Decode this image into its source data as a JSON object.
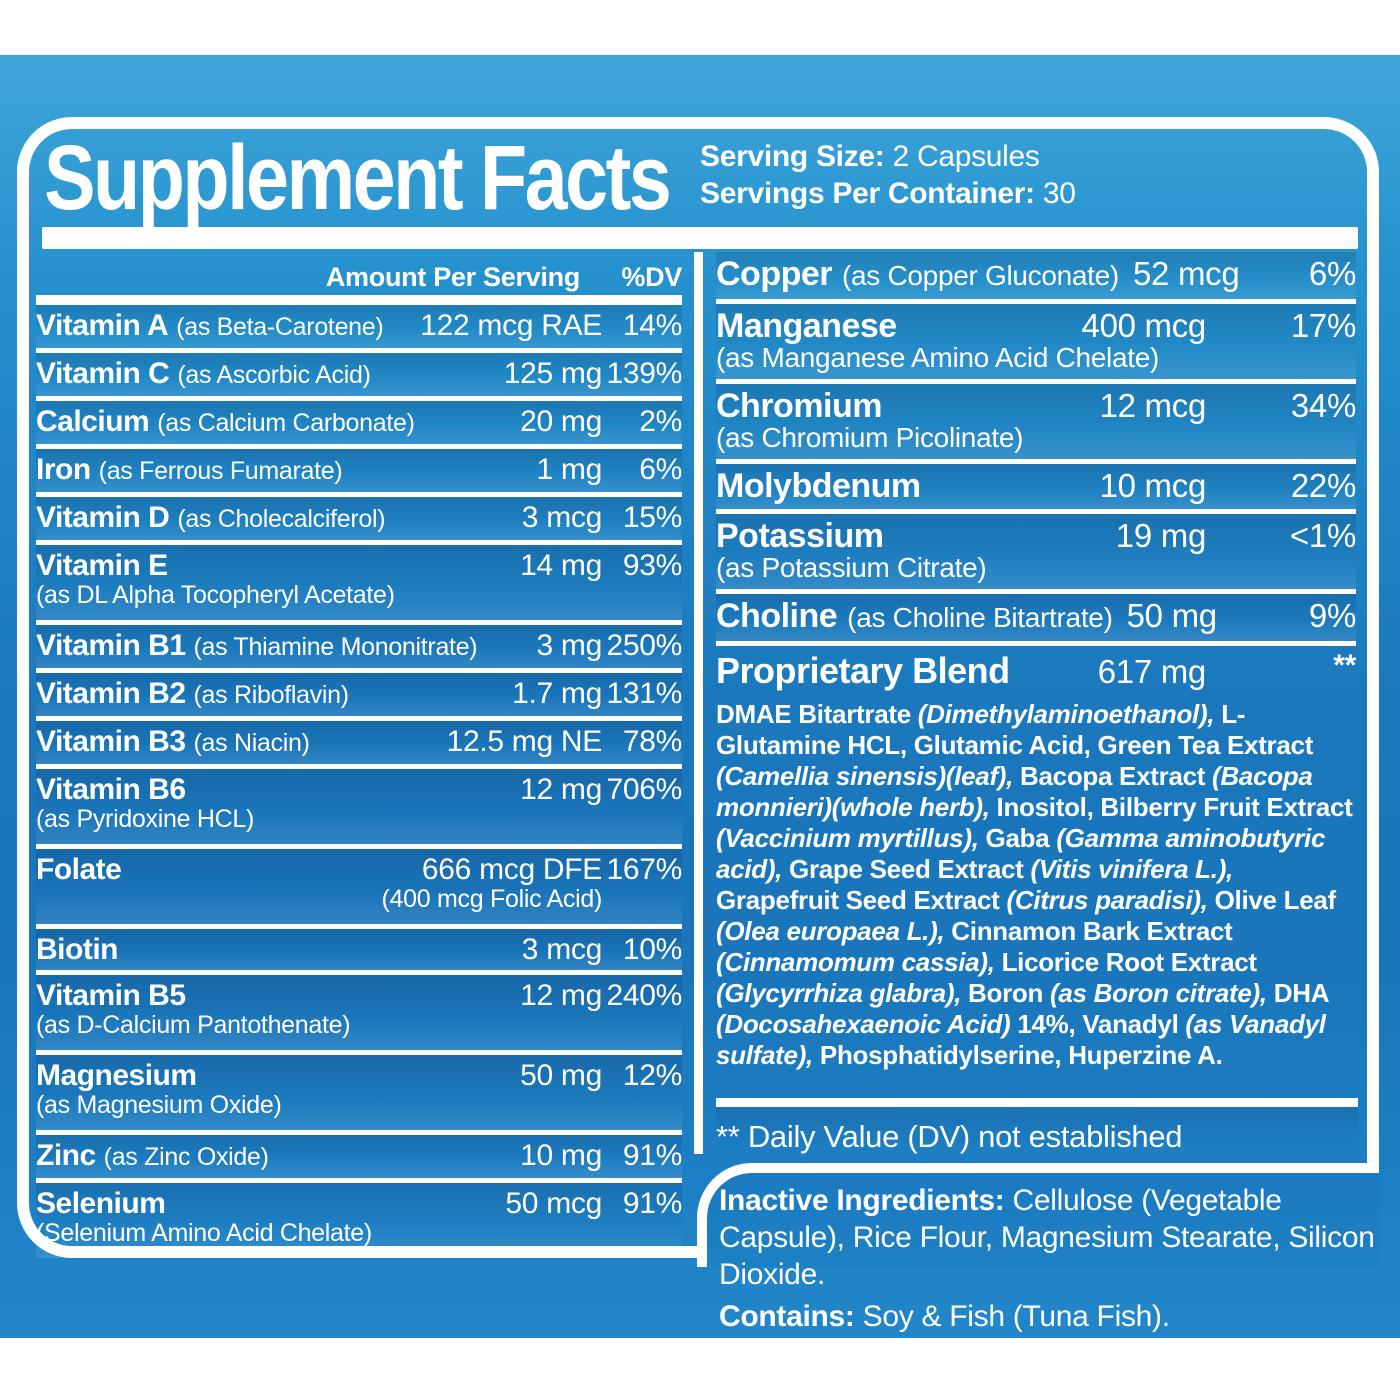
{
  "colors": {
    "background_top": "#3ea6da",
    "background_mid": "#1a75ba",
    "background_bottom": "#2286c9",
    "panel_border": "#ffffff",
    "text": "#ffffff"
  },
  "header": {
    "title": "Supplement Facts",
    "serving_size_label": "Serving Size:",
    "serving_size_value": "2 Capsules",
    "servings_label": "Servings Per Container:",
    "servings_value": "30"
  },
  "left_column": {
    "amount_header": "Amount Per Serving",
    "dv_header": "%DV",
    "rows": [
      {
        "name": "Vitamin A",
        "form": "(as Beta-Carotene)",
        "amount": "122 mcg RAE",
        "dv": "14%"
      },
      {
        "name": "Vitamin C",
        "form": "(as Ascorbic Acid)",
        "amount": "125 mg",
        "dv": "139%"
      },
      {
        "name": "Calcium",
        "form": "(as Calcium Carbonate)",
        "amount": "20 mg",
        "dv": "2%"
      },
      {
        "name": "Iron",
        "form": "(as Ferrous Fumarate)",
        "amount": "1 mg",
        "dv": "6%"
      },
      {
        "name": "Vitamin D",
        "form": "(as Cholecalciferol)",
        "amount": "3 mcg",
        "dv": "15%"
      },
      {
        "name": "Vitamin E",
        "sub": "(as DL Alpha Tocopheryl Acetate)",
        "amount": "14 mg",
        "dv": "93%"
      },
      {
        "name": "Vitamin B1",
        "form": "(as Thiamine Mononitrate)",
        "amount": "3 mg",
        "dv": "250%"
      },
      {
        "name": "Vitamin B2",
        "form": "(as Riboflavin)",
        "amount": "1.7 mg",
        "dv": "131%"
      },
      {
        "name": "Vitamin B3",
        "form": "(as Niacin)",
        "amount": "12.5 mg NE",
        "dv": "78%"
      },
      {
        "name": "Vitamin B6",
        "sub": "(as Pyridoxine HCL)",
        "amount": "12 mg",
        "dv": "706%"
      },
      {
        "name": "Folate",
        "amount": "666 mcg DFE",
        "amount_sub": "(400 mcg Folic Acid)",
        "dv": "167%"
      },
      {
        "name": "Biotin",
        "amount": "3 mcg",
        "dv": "10%"
      },
      {
        "name": "Vitamin B5",
        "sub": "(as D-Calcium Pantothenate)",
        "amount": "12 mg",
        "dv": "240%"
      },
      {
        "name": "Magnesium",
        "sub": "(as Magnesium Oxide)",
        "amount": "50 mg",
        "dv": "12%"
      },
      {
        "name": "Zinc",
        "form": "(as Zinc Oxide)",
        "amount": "10 mg",
        "dv": "91%"
      },
      {
        "name": "Selenium",
        "sub": "(Selenium Amino Acid Chelate)",
        "amount": "50 mcg",
        "dv": "91%"
      }
    ]
  },
  "right_column": {
    "rows": [
      {
        "name": "Copper",
        "form": "(as Copper Gluconate)",
        "amount": "52 mcg",
        "dv": "6%",
        "inline": true
      },
      {
        "name": "Manganese",
        "sub": "(as Manganese Amino Acid Chelate)",
        "amount": "400 mcg",
        "dv": "17%"
      },
      {
        "name": "Chromium",
        "sub": "(as Chromium Picolinate)",
        "amount": "12 mcg",
        "dv": "34%"
      },
      {
        "name": "Molybdenum",
        "amount": "10 mcg",
        "dv": "22%"
      },
      {
        "name": "Potassium",
        "sub": "(as Potassium Citrate)",
        "amount": "19 mg",
        "dv": "<1%"
      },
      {
        "name": "Choline",
        "form": "(as Choline Bitartrate)",
        "amount": "50 mg",
        "dv": "9%",
        "inline": true
      }
    ],
    "blend": {
      "name": "Proprietary Blend",
      "amount": "617 mg",
      "dv": "**",
      "segments": [
        {
          "s": "b",
          "t": "DMAE Bitartrate "
        },
        {
          "s": "i",
          "t": "(Dimethylaminoethanol),"
        },
        {
          "s": "b",
          "t": " L-Glutamine HCL, Glutamic Acid, Green Tea Extract "
        },
        {
          "s": "i",
          "t": "(Camellia sinensis)(leaf),"
        },
        {
          "s": "b",
          "t": " Bacopa Extract "
        },
        {
          "s": "i",
          "t": "(Bacopa monnieri)(whole herb),"
        },
        {
          "s": "b",
          "t": " Inositol, Bilberry Fruit Extract "
        },
        {
          "s": "i",
          "t": "(Vaccinium myrtillus),"
        },
        {
          "s": "b",
          "t": " Gaba "
        },
        {
          "s": "i",
          "t": "(Gamma aminobutyric acid),"
        },
        {
          "s": "b",
          "t": " Grape Seed Extract "
        },
        {
          "s": "i",
          "t": "(Vitis vinifera L.),"
        },
        {
          "s": "b",
          "t": " Grapefruit Seed Extract "
        },
        {
          "s": "i",
          "t": "(Citrus paradisi),"
        },
        {
          "s": "b",
          "t": " Olive Leaf "
        },
        {
          "s": "i",
          "t": "(Olea europaea L.),"
        },
        {
          "s": "b",
          "t": " Cinnamon Bark Extract "
        },
        {
          "s": "i",
          "t": "(Cinnamomum cassia),"
        },
        {
          "s": "b",
          "t": " Licorice Root Extract "
        },
        {
          "s": "i",
          "t": "(Glycyrrhiza glabra),"
        },
        {
          "s": "b",
          "t": " Boron "
        },
        {
          "s": "i",
          "t": "(as Boron citrate),"
        },
        {
          "s": "b",
          "t": " DHA "
        },
        {
          "s": "i",
          "t": "(Docosahexaenoic Acid)"
        },
        {
          "s": "b",
          "t": " 14%, Vanadyl "
        },
        {
          "s": "i",
          "t": "(as Vanadyl sulfate),"
        },
        {
          "s": "b",
          "t": " Phosphatidylserine, Huperzine A."
        }
      ]
    },
    "footnote": "** Daily Value (DV) not established"
  },
  "inactive": {
    "label": "Inactive Ingredients:",
    "text": " Cellulose (Vegetable Capsule), Rice Flour, Magnesium Stearate, Silicon Dioxide.",
    "contains_label": "Contains:",
    "contains_text": " Soy & Fish (Tuna Fish)."
  }
}
